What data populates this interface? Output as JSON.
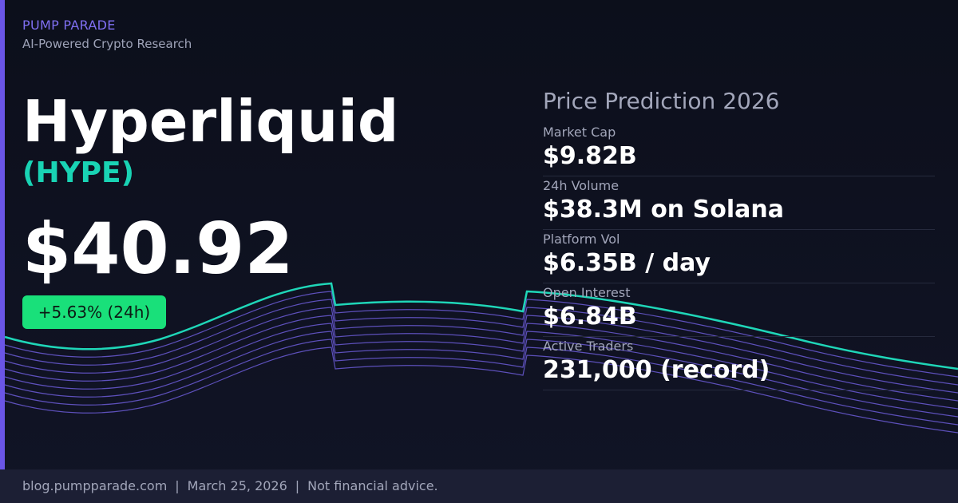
{
  "brand": "PUMP PARADE",
  "tagline": "AI-Powered Crypto Research",
  "coin": {
    "name": "Hyperliquid",
    "ticker": "(HYPE)",
    "price": "$40.92",
    "change": "+5.63% (24h)"
  },
  "panel": {
    "title": "Price Prediction 2026",
    "stats": [
      {
        "label": "Market Cap",
        "value": "$9.82B"
      },
      {
        "label": "24h Volume",
        "value": "$38.3M on Solana"
      },
      {
        "label": "Platform Vol",
        "value": "$6.35B / day"
      },
      {
        "label": "Open Interest",
        "value": "$6.84B"
      },
      {
        "label": "Active Traders",
        "value": "231,000 (record)"
      }
    ]
  },
  "footer": {
    "site": "blog.pumpparade.com",
    "separator": "|",
    "date": "March 25, 2026",
    "disclaimer": "Not financial advice."
  }
}
